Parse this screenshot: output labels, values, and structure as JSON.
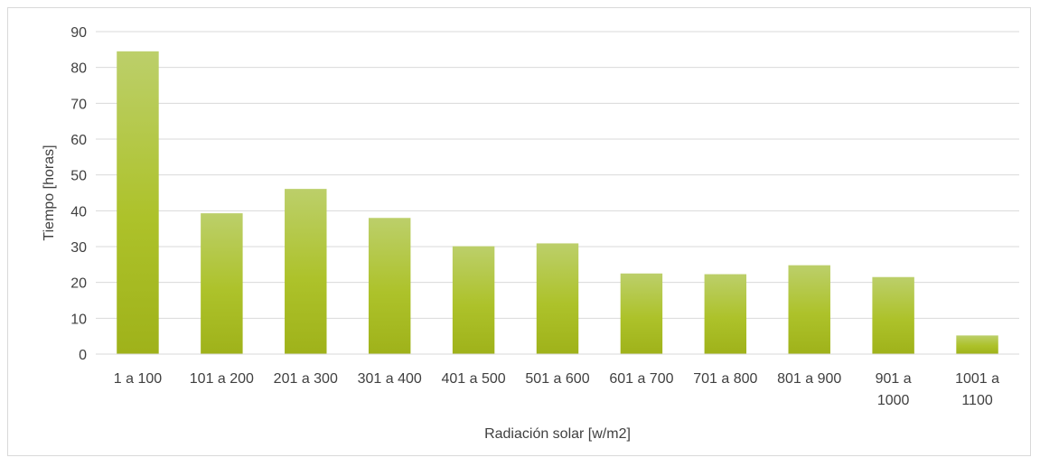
{
  "chart_data": {
    "type": "bar",
    "title": "",
    "xlabel": "Radiación solar [w/m2]",
    "ylabel": "Tiempo [horas]",
    "ylim": [
      0,
      90
    ],
    "yticks": [
      "0",
      "10",
      "20",
      "30",
      "40",
      "50",
      "60",
      "70",
      "80",
      "90"
    ],
    "grid": true,
    "legend": "none",
    "categories": [
      [
        "1 a 100"
      ],
      [
        "101 a 200"
      ],
      [
        "201 a 300"
      ],
      [
        "301 a 400"
      ],
      [
        "401 a 500"
      ],
      [
        "501 a 600"
      ],
      [
        "601 a 700"
      ],
      [
        "701 a 800"
      ],
      [
        "801 a 900"
      ],
      [
        "901 a",
        "1000"
      ],
      [
        "1001 a",
        "1100"
      ]
    ],
    "values": [
      84.5,
      39.3,
      46.1,
      38.0,
      30.1,
      30.9,
      22.5,
      22.3,
      24.8,
      21.5,
      5.2
    ],
    "colors": {
      "bar_top": "#bccf6a",
      "bar_mid": "#adc22a",
      "bar_bottom": "#9fb21a",
      "grid": "#d9d9d9",
      "text": "#404040"
    }
  }
}
